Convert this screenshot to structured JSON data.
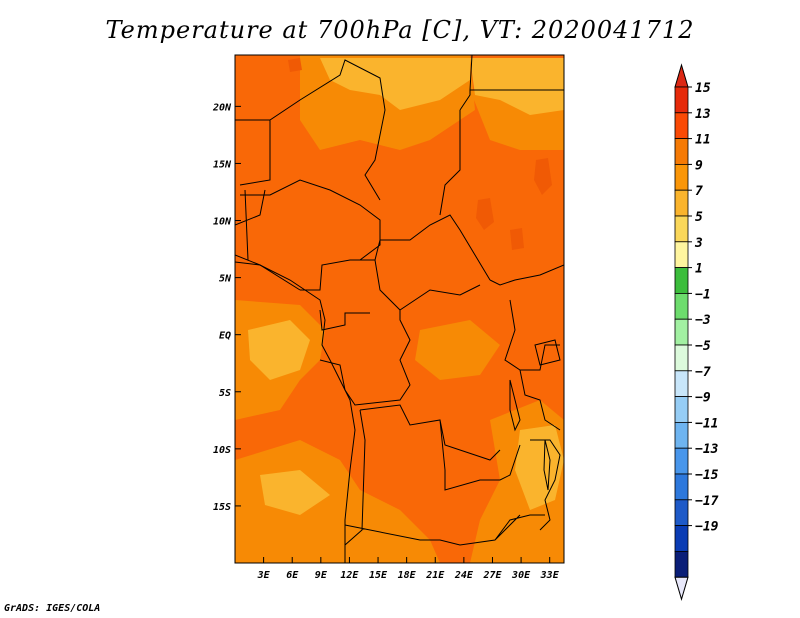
{
  "title": "Temperature at 700hPa [C], VT: 2020041712",
  "credit": "GrADS: IGES/COLA",
  "map": {
    "variable": "Temperature at 700hPa",
    "units": "C",
    "valid_time": "2020041712",
    "region": {
      "lon_range": [
        0,
        34.5
      ],
      "lat_range": [
        -20,
        24.5
      ]
    },
    "x_ticks": [
      "3E",
      "6E",
      "9E",
      "12E",
      "15E",
      "18E",
      "21E",
      "24E",
      "27E",
      "30E",
      "33E"
    ],
    "x_tick_values": [
      3,
      6,
      9,
      12,
      15,
      18,
      21,
      24,
      27,
      30,
      33
    ],
    "y_ticks": [
      "20N",
      "15N",
      "10N",
      "5N",
      "EQ",
      "5S",
      "10S",
      "15S"
    ],
    "y_tick_values": [
      20,
      15,
      10,
      5,
      0,
      -5,
      -10,
      -15
    ],
    "dominant_range": "7 to 13 C"
  },
  "colorbar": {
    "labels": [
      "15",
      "13",
      "11",
      "9",
      "7",
      "5",
      "3",
      "1",
      "−1",
      "−3",
      "−5",
      "−7",
      "−9",
      "−11",
      "−13",
      "−15",
      "−17",
      "−19"
    ],
    "colors": [
      "#e62a0a",
      "#fa4a05",
      "#f57a05",
      "#fa9608",
      "#fab42d",
      "#fad75a",
      "#fff59f",
      "#3cbd3c",
      "#6ddc6d",
      "#a2f0a2",
      "#dcfadc",
      "#c8e6fa",
      "#96cdf5",
      "#6eb4f0",
      "#4896eb",
      "#2d78dc",
      "#1e5ac8",
      "#0a3cb4",
      "#0a1e78"
    ],
    "min_arrow_color": "#e8e8fa",
    "max_arrow_color": "#dc2814"
  }
}
